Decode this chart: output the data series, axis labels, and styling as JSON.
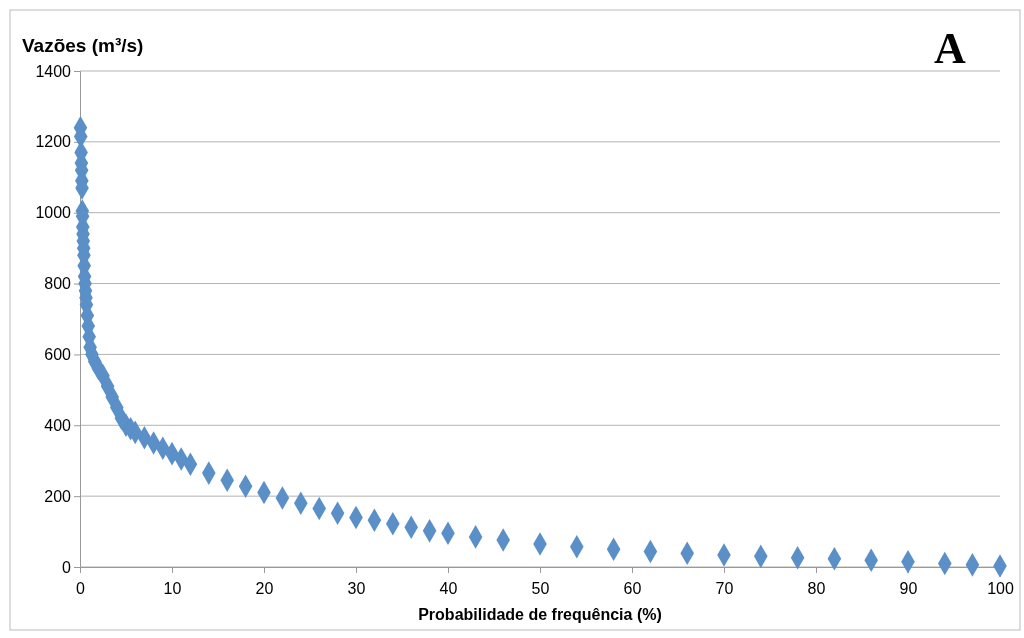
{
  "chart_data": {
    "type": "scatter",
    "ylabel": "Vazões (m³/s)",
    "xlabel": "Probabilidade de frequência (%)",
    "annotations": [
      "A"
    ],
    "xlim": [
      0,
      100
    ],
    "xticks": [
      0,
      10,
      20,
      30,
      40,
      50,
      60,
      70,
      80,
      90,
      100
    ],
    "ylim": [
      0,
      1400
    ],
    "yticks": [
      0,
      200,
      400,
      600,
      800,
      1000,
      1200,
      1400
    ],
    "grid": "y",
    "marker": "diamond",
    "series": [
      {
        "color": "#5a8fc7",
        "x": [
          0.05,
          0.08,
          0.12,
          0.15,
          0.18,
          0.2,
          0.22,
          0.25,
          0.28,
          0.3,
          0.33,
          0.36,
          0.4,
          0.43,
          0.46,
          0.5,
          0.55,
          0.6,
          0.65,
          0.7,
          0.8,
          0.9,
          1,
          1.1,
          1.3,
          1.6,
          2,
          2.5,
          3,
          3.5,
          4,
          4.5,
          5,
          5.5,
          6,
          7,
          8,
          9,
          10,
          11,
          12,
          14,
          16,
          18,
          20,
          22,
          24,
          26,
          28,
          30,
          32,
          34,
          36,
          38,
          40,
          43,
          46,
          50,
          54,
          58,
          62,
          66,
          70,
          74,
          78,
          82,
          86,
          90,
          94,
          97,
          100
        ],
        "values": [
          1240,
          1215,
          1170,
          1140,
          1120,
          1090,
          1070,
          1005,
          990,
          960,
          940,
          920,
          900,
          880,
          850,
          820,
          800,
          780,
          760,
          740,
          710,
          680,
          650,
          620,
          600,
          580,
          560,
          540,
          510,
          480,
          450,
          420,
          400,
          390,
          380,
          365,
          350,
          335,
          320,
          305,
          290,
          265,
          245,
          228,
          210,
          195,
          180,
          165,
          152,
          140,
          132,
          122,
          112,
          102,
          95,
          85,
          76,
          65,
          57,
          50,
          44,
          39,
          34,
          30,
          26,
          23,
          19,
          15,
          10,
          6,
          3
        ]
      }
    ]
  }
}
